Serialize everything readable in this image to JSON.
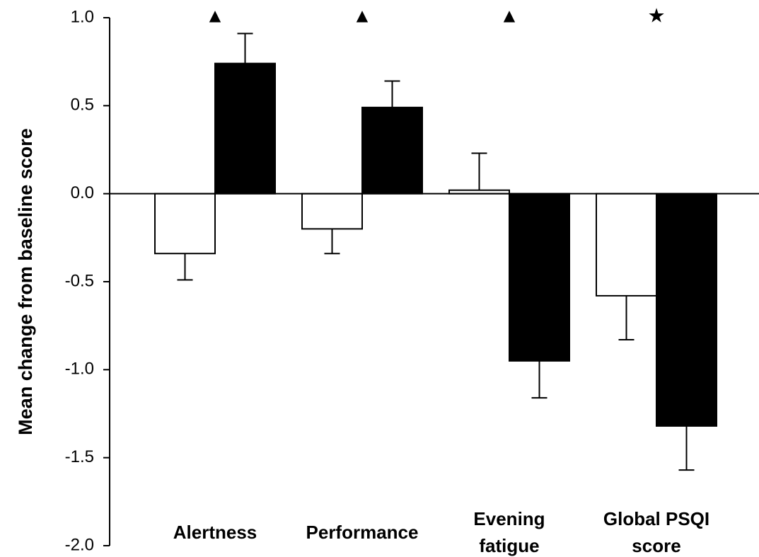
{
  "chart_data": {
    "type": "bar",
    "y_label": "Mean change from baseline score",
    "categories": [
      "Alertness",
      "Performance",
      "Evening\nfatigue",
      "Global PSQI\nscore"
    ],
    "annotations": [
      "▲",
      "▲",
      "▲",
      "★"
    ],
    "series": [
      {
        "color": "#ffffff",
        "values": [
          -0.34,
          -0.2,
          0.02,
          -0.58
        ],
        "errors": [
          0.15,
          0.14,
          0.21,
          0.25
        ]
      },
      {
        "color": "#000000",
        "values": [
          0.74,
          0.49,
          -0.95,
          -1.32
        ],
        "errors": [
          0.17,
          0.15,
          0.21,
          0.25
        ]
      }
    ],
    "ylim": [
      -2,
      1
    ],
    "yticks": [
      {
        "value": 1,
        "label": "1.0"
      },
      0.5,
      {
        "value": 0,
        "label": "0.0"
      },
      -0.5,
      {
        "value": -1,
        "label": "-1.0"
      },
      -1.5,
      {
        "value": -2,
        "label": "-2.0"
      }
    ],
    "grid": false
  }
}
